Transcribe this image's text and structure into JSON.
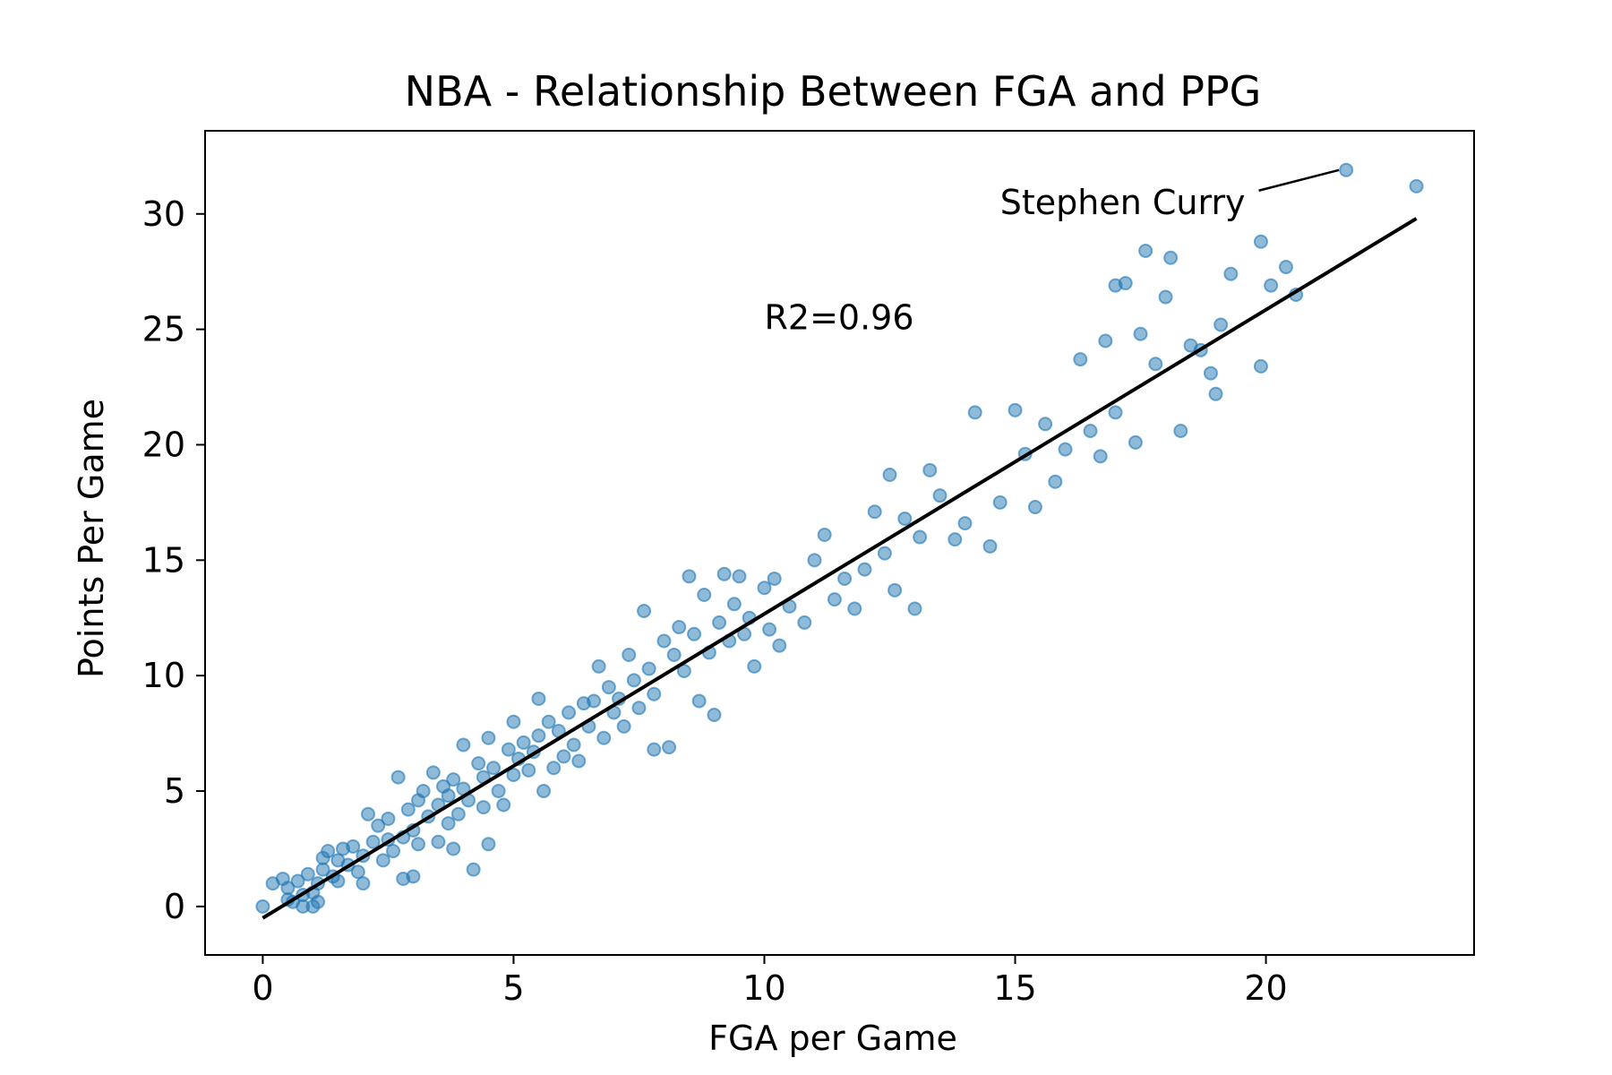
{
  "chart_data": {
    "type": "scatter",
    "title": "NBA - Relationship Between FGA and PPG",
    "xlabel": "FGA per Game",
    "ylabel": "Points Per Game",
    "xlim": [
      -1.15,
      24.15
    ],
    "ylim": [
      -2.1,
      33.6
    ],
    "xticks": [
      0,
      5,
      10,
      15,
      20
    ],
    "yticks": [
      0,
      5,
      10,
      15,
      20,
      25,
      30
    ],
    "grid": false,
    "marker_color": "#1f77b4",
    "fit_line_color": "#000000",
    "fit_line": {
      "x": [
        0,
        23
      ],
      "y": [
        -0.5,
        29.8
      ]
    },
    "annotations": {
      "r2_text": "R2=0.96",
      "r2_position": {
        "x": 10,
        "y": 25
      },
      "highlight_label": "Stephen Curry",
      "highlight_point": {
        "x": 21.6,
        "y": 31.9
      },
      "highlight_label_position": {
        "x": 14.7,
        "y": 30.0
      }
    },
    "points": [
      [
        0,
        0
      ],
      [
        0.2,
        1.0
      ],
      [
        0.4,
        1.2
      ],
      [
        0.5,
        0.8
      ],
      [
        0.5,
        0.3
      ],
      [
        0.6,
        0.2
      ],
      [
        0.7,
        1.1
      ],
      [
        0.8,
        0.5
      ],
      [
        0.8,
        0.0
      ],
      [
        0.9,
        1.4
      ],
      [
        1.0,
        0.6
      ],
      [
        1.0,
        0.0
      ],
      [
        1.1,
        0.2
      ],
      [
        1.1,
        1.0
      ],
      [
        1.2,
        1.6
      ],
      [
        1.2,
        2.1
      ],
      [
        1.3,
        2.4
      ],
      [
        1.4,
        1.3
      ],
      [
        1.5,
        2.0
      ],
      [
        1.5,
        1.1
      ],
      [
        1.6,
        2.5
      ],
      [
        1.7,
        1.8
      ],
      [
        1.8,
        2.6
      ],
      [
        1.9,
        1.5
      ],
      [
        2.0,
        2.2
      ],
      [
        2.0,
        1.0
      ],
      [
        2.1,
        4.0
      ],
      [
        2.2,
        2.8
      ],
      [
        2.3,
        3.5
      ],
      [
        2.4,
        2.0
      ],
      [
        2.5,
        2.9
      ],
      [
        2.5,
        3.8
      ],
      [
        2.6,
        2.4
      ],
      [
        2.7,
        5.6
      ],
      [
        2.8,
        1.2
      ],
      [
        2.8,
        3.0
      ],
      [
        2.9,
        4.2
      ],
      [
        3.0,
        1.3
      ],
      [
        3.0,
        3.3
      ],
      [
        3.1,
        2.7
      ],
      [
        3.1,
        4.6
      ],
      [
        3.2,
        5.0
      ],
      [
        3.3,
        3.9
      ],
      [
        3.4,
        5.8
      ],
      [
        3.5,
        4.4
      ],
      [
        3.5,
        2.8
      ],
      [
        3.6,
        5.2
      ],
      [
        3.7,
        4.8
      ],
      [
        3.7,
        3.6
      ],
      [
        3.8,
        5.5
      ],
      [
        3.8,
        2.5
      ],
      [
        3.9,
        4.0
      ],
      [
        4.0,
        7.0
      ],
      [
        4.0,
        5.1
      ],
      [
        4.1,
        4.6
      ],
      [
        4.2,
        1.6
      ],
      [
        4.3,
        6.2
      ],
      [
        4.4,
        5.6
      ],
      [
        4.4,
        4.3
      ],
      [
        4.5,
        2.7
      ],
      [
        4.5,
        7.3
      ],
      [
        4.6,
        6.0
      ],
      [
        4.7,
        5.0
      ],
      [
        4.8,
        4.4
      ],
      [
        4.9,
        6.8
      ],
      [
        5.0,
        8.0
      ],
      [
        5.0,
        5.7
      ],
      [
        5.1,
        6.4
      ],
      [
        5.2,
        7.1
      ],
      [
        5.3,
        5.9
      ],
      [
        5.4,
        6.7
      ],
      [
        5.5,
        9.0
      ],
      [
        5.5,
        7.4
      ],
      [
        5.6,
        5.0
      ],
      [
        5.7,
        8.0
      ],
      [
        5.8,
        6.0
      ],
      [
        5.9,
        7.6
      ],
      [
        6.0,
        6.5
      ],
      [
        6.1,
        8.4
      ],
      [
        6.2,
        7.0
      ],
      [
        6.3,
        6.3
      ],
      [
        6.4,
        8.8
      ],
      [
        6.5,
        7.8
      ],
      [
        6.6,
        8.9
      ],
      [
        6.7,
        10.4
      ],
      [
        6.8,
        7.3
      ],
      [
        6.9,
        9.5
      ],
      [
        7.0,
        8.4
      ],
      [
        7.1,
        9.0
      ],
      [
        7.2,
        7.8
      ],
      [
        7.3,
        10.9
      ],
      [
        7.4,
        9.8
      ],
      [
        7.5,
        8.6
      ],
      [
        7.6,
        12.8
      ],
      [
        7.7,
        10.3
      ],
      [
        7.8,
        9.2
      ],
      [
        7.8,
        6.8
      ],
      [
        8.0,
        11.5
      ],
      [
        8.1,
        6.9
      ],
      [
        8.2,
        10.9
      ],
      [
        8.3,
        12.1
      ],
      [
        8.4,
        10.2
      ],
      [
        8.5,
        14.3
      ],
      [
        8.6,
        11.8
      ],
      [
        8.7,
        8.9
      ],
      [
        8.8,
        13.5
      ],
      [
        8.9,
        11.0
      ],
      [
        9.0,
        8.3
      ],
      [
        9.1,
        12.3
      ],
      [
        9.2,
        14.4
      ],
      [
        9.3,
        11.5
      ],
      [
        9.4,
        13.1
      ],
      [
        9.5,
        14.3
      ],
      [
        9.6,
        11.8
      ],
      [
        9.7,
        12.5
      ],
      [
        9.8,
        10.4
      ],
      [
        10.0,
        13.8
      ],
      [
        10.1,
        12.0
      ],
      [
        10.2,
        14.2
      ],
      [
        10.3,
        11.3
      ],
      [
        10.5,
        13.0
      ],
      [
        10.8,
        12.3
      ],
      [
        11.0,
        15.0
      ],
      [
        11.2,
        16.1
      ],
      [
        11.4,
        13.3
      ],
      [
        11.6,
        14.2
      ],
      [
        11.8,
        12.9
      ],
      [
        12.0,
        14.6
      ],
      [
        12.2,
        17.1
      ],
      [
        12.4,
        15.3
      ],
      [
        12.5,
        18.7
      ],
      [
        12.6,
        13.7
      ],
      [
        12.8,
        16.8
      ],
      [
        13.0,
        12.9
      ],
      [
        13.1,
        16.0
      ],
      [
        13.3,
        18.9
      ],
      [
        13.5,
        17.8
      ],
      [
        13.8,
        15.9
      ],
      [
        14.0,
        16.6
      ],
      [
        14.2,
        21.4
      ],
      [
        14.5,
        15.6
      ],
      [
        14.7,
        17.5
      ],
      [
        15.0,
        21.5
      ],
      [
        15.2,
        19.6
      ],
      [
        15.4,
        17.3
      ],
      [
        15.6,
        20.9
      ],
      [
        15.8,
        18.4
      ],
      [
        16.0,
        19.8
      ],
      [
        16.3,
        23.7
      ],
      [
        16.5,
        20.6
      ],
      [
        16.7,
        19.5
      ],
      [
        16.8,
        24.5
      ],
      [
        17.0,
        21.4
      ],
      [
        17.0,
        26.9
      ],
      [
        17.2,
        27.0
      ],
      [
        17.4,
        20.1
      ],
      [
        17.5,
        24.8
      ],
      [
        17.6,
        28.4
      ],
      [
        17.8,
        23.5
      ],
      [
        18.0,
        26.4
      ],
      [
        18.1,
        28.1
      ],
      [
        18.3,
        20.6
      ],
      [
        18.5,
        24.3
      ],
      [
        18.7,
        24.1
      ],
      [
        18.9,
        23.1
      ],
      [
        19.0,
        22.2
      ],
      [
        19.1,
        25.2
      ],
      [
        19.3,
        27.4
      ],
      [
        19.9,
        23.4
      ],
      [
        19.9,
        28.8
      ],
      [
        20.1,
        26.9
      ],
      [
        20.4,
        27.7
      ],
      [
        20.6,
        26.5
      ],
      [
        21.6,
        31.9
      ],
      [
        23.0,
        31.2
      ]
    ]
  }
}
